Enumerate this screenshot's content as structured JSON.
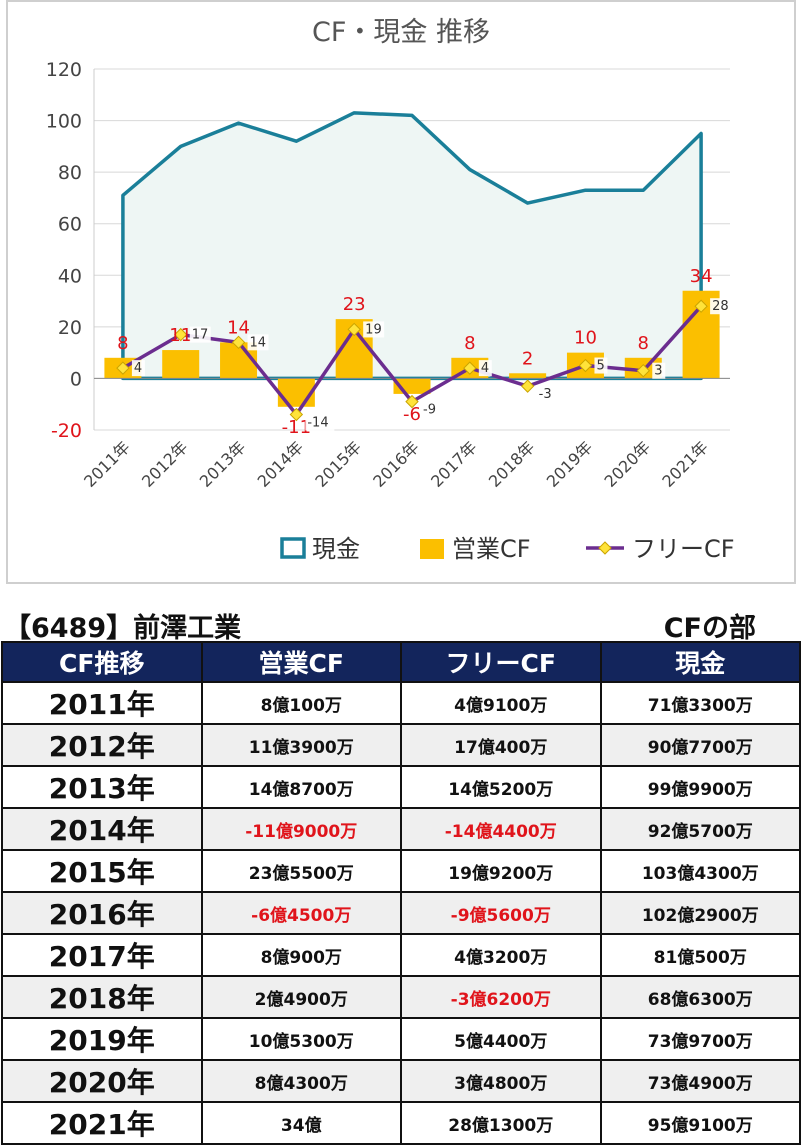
{
  "chart_data": {
    "type": "bar+line",
    "title": "CF・現金 推移",
    "categories": [
      "2011年",
      "2012年",
      "2013年",
      "2014年",
      "2015年",
      "2016年",
      "2017年",
      "2018年",
      "2019年",
      "2020年",
      "2021年"
    ],
    "ylim": [
      -20,
      120
    ],
    "yticks": [
      -20,
      0,
      20,
      40,
      60,
      80,
      100,
      120
    ],
    "grid": true,
    "legend_position": "bottom",
    "series": [
      {
        "name": "現金",
        "kind": "area",
        "color": "#1a7f99",
        "values": [
          71,
          90,
          99,
          92,
          103,
          102,
          81,
          68,
          73,
          73,
          95
        ]
      },
      {
        "name": "営業CF",
        "kind": "bar",
        "color": "#fbbf00",
        "values": [
          8,
          11,
          14,
          -11,
          23,
          -6,
          8,
          2,
          10,
          8,
          34
        ]
      },
      {
        "name": "フリーCF",
        "kind": "line",
        "color": "#6b2d8f",
        "values": [
          4,
          17,
          14,
          -14,
          19,
          -9,
          4,
          -3,
          5,
          3,
          28
        ]
      }
    ]
  },
  "header": {
    "company": "【6489】前澤工業",
    "section": "CFの部"
  },
  "table": {
    "columns": [
      "CF推移",
      "営業CF",
      "フリーCF",
      "現金"
    ],
    "rows": [
      {
        "year": "2011年",
        "op": "8億100万",
        "free": "4億9100万",
        "cash": "71億3300万"
      },
      {
        "year": "2012年",
        "op": "11億3900万",
        "free": "17億400万",
        "cash": "90億7700万"
      },
      {
        "year": "2013年",
        "op": "14億8700万",
        "free": "14億5200万",
        "cash": "99億9900万"
      },
      {
        "year": "2014年",
        "op": "-11億9000万",
        "free": "-14億4400万",
        "cash": "92億5700万"
      },
      {
        "year": "2015年",
        "op": "23億5500万",
        "free": "19億9200万",
        "cash": "103億4300万"
      },
      {
        "year": "2016年",
        "op": "-6億4500万",
        "free": "-9億5600万",
        "cash": "102億2900万"
      },
      {
        "year": "2017年",
        "op": "8億900万",
        "free": "4億3200万",
        "cash": "81億500万"
      },
      {
        "year": "2018年",
        "op": "2億4900万",
        "free": "-3億6200万",
        "cash": "68億6300万"
      },
      {
        "year": "2019年",
        "op": "10億5300万",
        "free": "5億4400万",
        "cash": "73億9700万"
      },
      {
        "year": "2020年",
        "op": "8億4300万",
        "free": "3億4800万",
        "cash": "73億4900万"
      },
      {
        "year": "2021年",
        "op": "34億",
        "free": "28億1300万",
        "cash": "95億9100万"
      }
    ]
  },
  "colors": {
    "header_bg": "#13255c",
    "negative": "#e0141b",
    "zebra": "#efefef"
  }
}
